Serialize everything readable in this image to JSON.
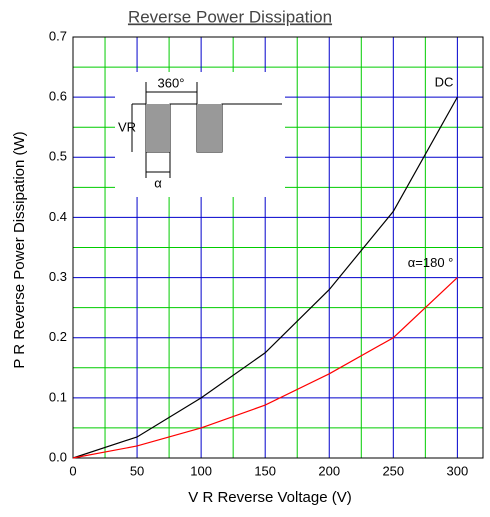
{
  "chart_data": {
    "type": "line",
    "title": "Reverse Power Dissipation",
    "xlabel": "V R    Reverse Voltage    (V)",
    "ylabel": "P R    Reverse   Power   Dissipation   (W)",
    "x": [
      0,
      50,
      100,
      150,
      200,
      250,
      300
    ],
    "series": [
      {
        "name": "DC",
        "color": "#000000",
        "values": [
          0,
          0.035,
          0.1,
          0.175,
          0.28,
          0.41,
          0.6
        ]
      },
      {
        "name": "α=180 °",
        "color": "#ff0000",
        "values": [
          0,
          0.02,
          0.05,
          0.088,
          0.14,
          0.2,
          0.3
        ]
      }
    ],
    "inset_labels": [
      "360°",
      "VR",
      "α"
    ],
    "xlim": [
      0,
      320
    ],
    "xticks": [
      0,
      50,
      100,
      150,
      200,
      250,
      300
    ],
    "ylim": [
      0,
      0.7
    ],
    "yticks": [
      {
        "value": 0,
        "label": "0.0"
      },
      0.1,
      0.2,
      0.3,
      0.4,
      0.5,
      0.6,
      0.7
    ],
    "grid": true,
    "major_grid_color": "#0000cc",
    "minor_grid_color": "#00cc00"
  }
}
